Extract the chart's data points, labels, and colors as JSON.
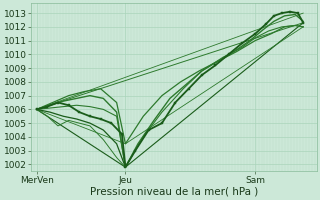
{
  "bg_color": "#cce8d8",
  "grid_color_major": "#aad4bb",
  "grid_color_minor": "#bbddc9",
  "line_dark": "#1a5c1a",
  "line_mid": "#2d7a2d",
  "ylabel_ticks": [
    1002,
    1003,
    1004,
    1005,
    1006,
    1007,
    1008,
    1009,
    1010,
    1011,
    1012,
    1013
  ],
  "ylim": [
    1001.5,
    1013.7
  ],
  "xlabel": "Pression niveau de la mer( hPa )",
  "tick_fontsize": 6.5,
  "xlabel_fontsize": 7.5,
  "xtick_vals": [
    0.0,
    0.333,
    0.82
  ],
  "xtick_labels": [
    "MerVen",
    "Jeu",
    "Sam"
  ],
  "xlim": [
    -0.02,
    1.05
  ],
  "lines": [
    {
      "x": [
        0.0,
        0.04,
        0.08,
        0.12,
        0.16,
        0.2,
        0.24,
        0.28,
        0.32,
        0.333,
        0.37,
        0.42,
        0.47,
        0.52,
        0.57,
        0.62,
        0.67,
        0.72,
        0.77,
        0.82,
        0.86,
        0.89,
        0.92,
        0.95,
        0.98,
        1.0
      ],
      "y": [
        1006.0,
        1006.2,
        1006.5,
        1006.3,
        1005.8,
        1005.5,
        1005.3,
        1005.0,
        1004.2,
        1001.8,
        1003.0,
        1004.5,
        1005.0,
        1006.5,
        1007.5,
        1008.5,
        1009.2,
        1010.0,
        1010.8,
        1011.5,
        1012.2,
        1012.8,
        1013.0,
        1013.1,
        1013.0,
        1012.3
      ],
      "color": "#1a5c1a",
      "lw": 1.3,
      "marker": "s",
      "ms": 1.8,
      "zorder": 6
    },
    {
      "x": [
        0.0,
        0.05,
        0.1,
        0.15,
        0.2,
        0.25,
        0.3,
        0.333,
        0.38,
        0.44,
        0.5,
        0.56,
        0.62,
        0.68,
        0.74,
        0.8,
        0.85,
        0.89,
        0.93,
        0.97,
        1.0
      ],
      "y": [
        1006.0,
        1006.3,
        1006.6,
        1006.8,
        1007.0,
        1006.8,
        1005.8,
        1001.8,
        1003.5,
        1005.2,
        1006.8,
        1007.8,
        1008.8,
        1009.5,
        1010.2,
        1011.0,
        1011.8,
        1012.4,
        1012.8,
        1012.9,
        1012.4
      ],
      "color": "#2d7a2d",
      "lw": 1.0,
      "marker": null,
      "ms": 0,
      "zorder": 5
    },
    {
      "x": [
        0.0,
        0.06,
        0.12,
        0.18,
        0.24,
        0.3,
        0.333,
        0.4,
        0.47,
        0.54,
        0.61,
        0.68,
        0.75,
        0.82,
        0.88,
        0.93,
        0.97,
        1.0
      ],
      "y": [
        1006.0,
        1006.5,
        1007.0,
        1007.3,
        1007.5,
        1006.5,
        1003.5,
        1005.5,
        1007.0,
        1008.0,
        1008.8,
        1009.5,
        1010.2,
        1011.0,
        1011.5,
        1012.0,
        1012.1,
        1012.0
      ],
      "color": "#2d7a2d",
      "lw": 0.9,
      "marker": null,
      "ms": 0,
      "zorder": 4
    },
    {
      "x": [
        0.0,
        1.0
      ],
      "y": [
        1006.0,
        1012.3
      ],
      "color": "#2d7a2d",
      "lw": 0.7,
      "marker": null,
      "ms": 0,
      "zorder": 2
    },
    {
      "x": [
        0.0,
        0.333
      ],
      "y": [
        1006.0,
        1001.8
      ],
      "color": "#1a5c1a",
      "lw": 0.8,
      "marker": null,
      "ms": 0,
      "zorder": 2
    },
    {
      "x": [
        0.333,
        1.0
      ],
      "y": [
        1001.8,
        1012.3
      ],
      "color": "#1a5c1a",
      "lw": 0.8,
      "marker": null,
      "ms": 0,
      "zorder": 2
    },
    {
      "x": [
        0.0,
        1.0
      ],
      "y": [
        1006.0,
        1013.0
      ],
      "color": "#2d7a2d",
      "lw": 0.6,
      "marker": null,
      "ms": 0,
      "zorder": 2
    },
    {
      "x": [
        0.0,
        0.333,
        1.0
      ],
      "y": [
        1006.0,
        1003.5,
        1012.0
      ],
      "color": "#2d7a2d",
      "lw": 0.6,
      "marker": null,
      "ms": 0,
      "zorder": 2
    },
    {
      "x": [
        0.0,
        0.05,
        0.1,
        0.15,
        0.2,
        0.25,
        0.3,
        0.333
      ],
      "y": [
        1006.0,
        1005.8,
        1005.5,
        1005.3,
        1005.0,
        1004.5,
        1003.5,
        1001.8
      ],
      "color": "#1a5c1a",
      "lw": 0.9,
      "marker": null,
      "ms": 0,
      "zorder": 3
    },
    {
      "x": [
        0.0,
        0.04,
        0.08,
        0.12,
        0.16,
        0.2,
        0.25,
        0.3,
        0.333
      ],
      "y": [
        1006.0,
        1005.5,
        1004.8,
        1005.2,
        1005.0,
        1004.8,
        1003.8,
        1002.5,
        1001.8
      ],
      "color": "#2d7a2d",
      "lw": 0.7,
      "marker": null,
      "ms": 0,
      "zorder": 2
    },
    {
      "x": [
        0.0,
        0.05,
        0.1,
        0.15,
        0.2,
        0.25,
        0.3,
        0.333,
        0.4,
        0.47,
        0.55,
        0.62,
        0.7,
        0.77,
        0.82,
        0.87,
        0.92,
        0.97,
        1.0
      ],
      "y": [
        1006.0,
        1006.1,
        1006.2,
        1006.3,
        1006.2,
        1006.0,
        1005.5,
        1001.8,
        1004.0,
        1005.8,
        1007.5,
        1008.8,
        1009.8,
        1010.5,
        1011.2,
        1011.7,
        1012.0,
        1012.1,
        1012.0
      ],
      "color": "#2d7a2d",
      "lw": 0.8,
      "marker": null,
      "ms": 0,
      "zorder": 3
    }
  ]
}
